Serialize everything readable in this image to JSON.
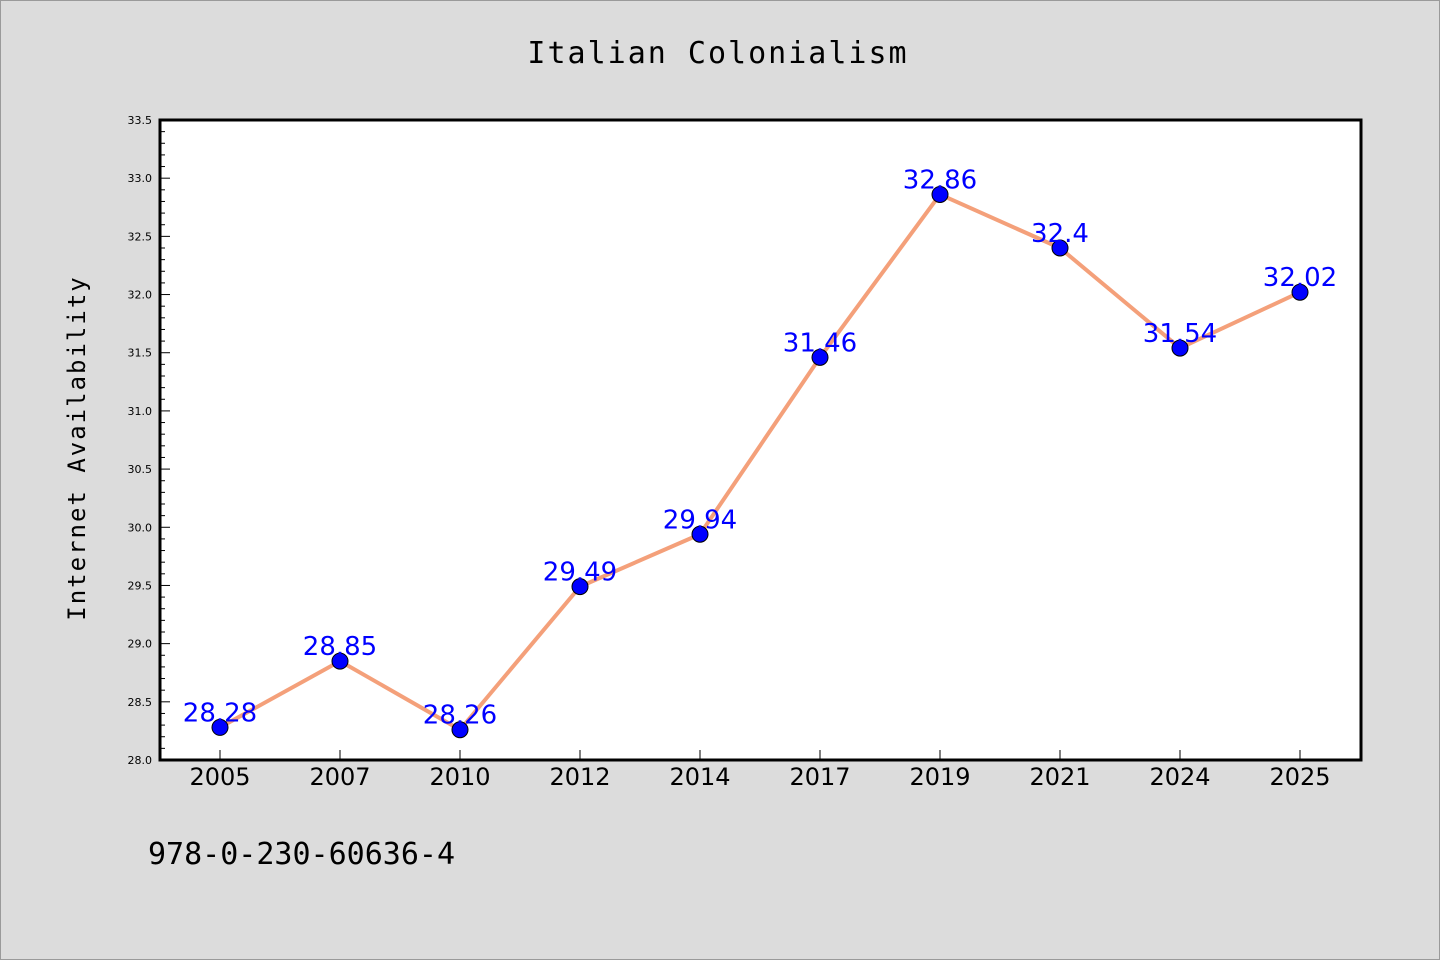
{
  "chart_data": {
    "type": "line",
    "title": "Italian Colonialism",
    "xlabel": "",
    "ylabel": "Internet Availability",
    "categories": [
      "2005",
      "2007",
      "2010",
      "2012",
      "2014",
      "2017",
      "2019",
      "2021",
      "2024",
      "2025"
    ],
    "series": [
      {
        "values": [
          28.28,
          28.85,
          28.26,
          29.49,
          29.94,
          31.46,
          32.86,
          32.4,
          31.54,
          32.02
        ],
        "labels": [
          "28.28",
          "28.85",
          "28.26",
          "29.49",
          "29.94",
          "31.46",
          "32.86",
          "32.4",
          "31.54",
          "32.02"
        ],
        "line_color": "#f4a07a",
        "marker_color": "#0000ff"
      }
    ],
    "ylim": [
      28.0,
      33.5
    ],
    "yticks": [
      "28.0",
      "28.5",
      "29.0",
      "29.5",
      "30.0",
      "30.5",
      "31.0",
      "31.5",
      "32.0",
      "32.5",
      "33.0",
      "33.5"
    ],
    "grid": false,
    "legend": "none"
  },
  "footer": {
    "text": "978-0-230-60636-4"
  },
  "colors": {
    "background": "#dcdcdc",
    "plot_background": "#ffffff",
    "label_color": "#0000ff"
  }
}
